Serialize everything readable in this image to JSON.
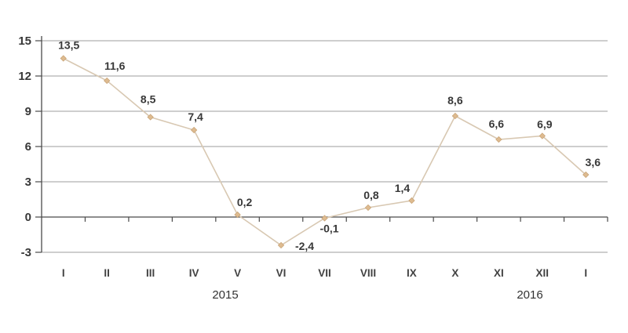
{
  "chart_data": {
    "type": "line",
    "title": "",
    "xlabel": "",
    "ylabel": "",
    "categories": [
      "I",
      "II",
      "III",
      "IV",
      "V",
      "VI",
      "VII",
      "VIII",
      "IX",
      "X",
      "XI",
      "XII",
      "I"
    ],
    "values": [
      13.5,
      11.6,
      8.5,
      7.4,
      0.2,
      -2.4,
      -0.1,
      0.8,
      1.4,
      8.6,
      6.6,
      6.9,
      3.6
    ],
    "point_labels": [
      "13,5",
      "11,6",
      "8,5",
      "7,4",
      "0,2",
      "-2,4",
      "-0,1",
      "0,8",
      "1,4",
      "8,6",
      "6,6",
      "6,9",
      "3,6"
    ],
    "year_labels": [
      "2015",
      "2016"
    ],
    "y_ticks": [
      15,
      12,
      9,
      6,
      3,
      0,
      -3
    ],
    "y_tick_labels": [
      "15",
      "12",
      "9",
      "6",
      "3",
      "0",
      "-3"
    ],
    "ylim": [
      -3,
      15
    ],
    "grid": true,
    "legend": "none",
    "marker": "diamond",
    "colors": {
      "line": "#d8c8b2",
      "marker_fill": "#debb90",
      "marker_stroke": "#c8a376",
      "grid": "#9c9c9c",
      "axis": "#4a4a4a",
      "label_text": "#383838"
    }
  }
}
